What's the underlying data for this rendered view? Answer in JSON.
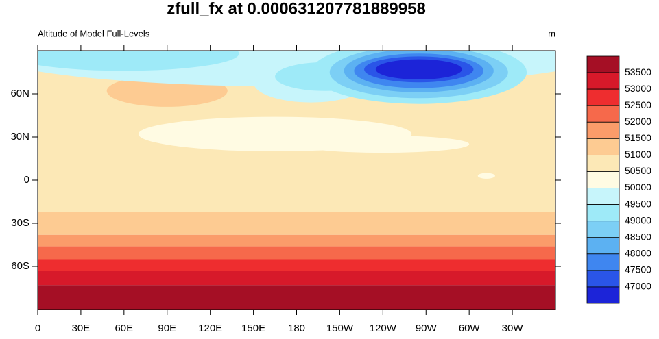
{
  "chart_data": {
    "type": "map",
    "title": "zfull_fx at 0.000631207781889958",
    "left_label": "Altitude of Model Full-Levels",
    "units": "m",
    "xlim": [
      0,
      360
    ],
    "ylim": [
      -90,
      90
    ],
    "xticks": [
      0,
      {
        "value": 30,
        "label": "30E"
      },
      {
        "value": 60,
        "label": "60E"
      },
      {
        "value": 90,
        "label": "90E"
      },
      {
        "value": 120,
        "label": "120E"
      },
      {
        "value": 150,
        "label": "150E"
      },
      180,
      {
        "value": 210,
        "label": "150W"
      },
      {
        "value": 240,
        "label": "120W"
      },
      {
        "value": 270,
        "label": "90W"
      },
      {
        "value": 300,
        "label": "60W"
      },
      {
        "value": 330,
        "label": "30W"
      }
    ],
    "yticks": [
      {
        "value": 60,
        "label": "60N"
      },
      {
        "value": 30,
        "label": "30N"
      },
      0,
      {
        "value": -30,
        "label": "30S"
      },
      {
        "value": -60,
        "label": "60S"
      }
    ],
    "levels": [
      53500,
      53000,
      52500,
      52000,
      51500,
      51000,
      50500,
      50000,
      49500,
      49000,
      48500,
      48000,
      47500,
      47000
    ],
    "colors": [
      "#a50f25",
      "#d7192a",
      "#ee2d2f",
      "#f6694b",
      "#fb9c6a",
      "#fdcb92",
      "#fce8b6",
      "#fffbe3",
      "#c7f5fb",
      "#9eeaf8",
      "#7ccff5",
      "#5cb1f2",
      "#3f86f0",
      "#2a55e8",
      "#1c24d8"
    ]
  }
}
